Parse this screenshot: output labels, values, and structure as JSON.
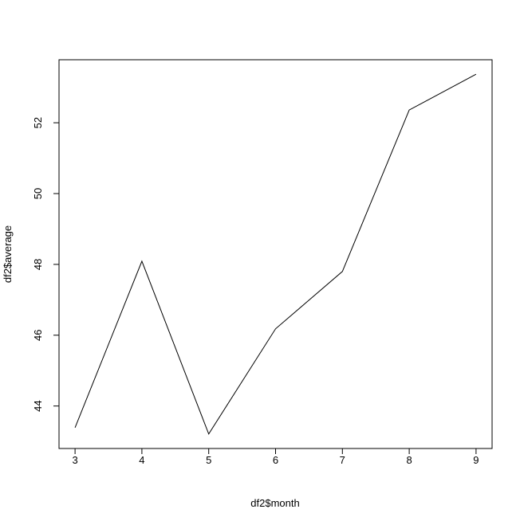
{
  "chart_data": {
    "type": "line",
    "x_label": "df2$month",
    "y_label": "df2$average",
    "x": [
      3,
      4,
      5,
      6,
      7,
      8,
      9
    ],
    "values": [
      43.39,
      48.09,
      43.21,
      46.18,
      47.8,
      52.36,
      53.37
    ],
    "color": "#000000",
    "xlim": [
      2.76,
      9.24
    ],
    "xticks": [
      3,
      4,
      5,
      6,
      7,
      8,
      9
    ],
    "ylim": [
      42.8,
      53.78
    ],
    "yticks": [
      44,
      46,
      48,
      50,
      52
    ]
  }
}
